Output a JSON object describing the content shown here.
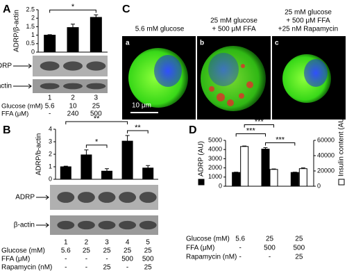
{
  "chart_data": [
    {
      "type": "bar",
      "panel": "A",
      "ylabel": "ADRP/β-actin",
      "ylim": [
        0,
        2.5
      ],
      "yticks": [
        0,
        0.5,
        1,
        1.5,
        2,
        2.5
      ],
      "categories": [
        "1",
        "2",
        "3"
      ],
      "series": [
        {
          "color": "#000000",
          "values": [
            1,
            1.45,
            2.05
          ],
          "errors": [
            0.03,
            0.2,
            0.15
          ]
        }
      ],
      "significance": [
        {
          "between": [
            [
              0,
              0
            ],
            [
              0,
              2
            ]
          ],
          "label": "*"
        }
      ],
      "blots": [
        "ADRP",
        "β-actin"
      ],
      "rows": [
        {
          "label": "Glucose (mM)",
          "values": [
            "5.6",
            "10",
            "25"
          ]
        },
        {
          "label": "FFA (μM)",
          "values": [
            "-",
            "240",
            "500"
          ]
        }
      ]
    },
    {
      "type": "bar",
      "panel": "B",
      "ylabel": "ADRP/b-actin",
      "ylim": [
        0,
        4
      ],
      "yticks": [
        0,
        1,
        2,
        3,
        4
      ],
      "categories": [
        "1",
        "2",
        "3",
        "4",
        "5"
      ],
      "series": [
        {
          "color": "#000000",
          "values": [
            1,
            1.95,
            0.65,
            3.05,
            0.9
          ],
          "errors": [
            0.05,
            0.4,
            0.2,
            0.45,
            0.2
          ]
        }
      ],
      "significance": [
        {
          "between": [
            [
              0,
              1
            ],
            [
              0,
              2
            ]
          ],
          "label": "*"
        },
        {
          "between": [
            [
              0,
              3
            ],
            [
              0,
              4
            ]
          ],
          "label": "**"
        },
        {
          "between": [
            [
              0,
              0
            ],
            [
              0,
              3
            ]
          ],
          "label": "**"
        }
      ],
      "blots": [
        "ADRP",
        "β-actin"
      ],
      "rows": [
        {
          "label": "Glucose (mM)",
          "values": [
            "5.6",
            "25",
            "25",
            "25",
            "25"
          ]
        },
        {
          "label": "FFA (μM)",
          "values": [
            "-",
            "-",
            "-",
            "500",
            "500"
          ]
        },
        {
          "label": "Rapamycin (nM)",
          "values": [
            "-",
            "-",
            "25",
            "-",
            "25"
          ]
        }
      ]
    },
    {
      "type": "bar",
      "panel": "D",
      "ylim": [
        0,
        5000
      ],
      "yticks": [
        0,
        1000,
        2000,
        3000,
        4000,
        5000
      ],
      "y2lim": [
        0,
        60000
      ],
      "y2ticks": [
        0,
        20000,
        40000,
        60000
      ],
      "series": [
        {
          "name": "ADRP (AU)",
          "color": "#000000",
          "values": [
            1500,
            4050,
            1500
          ],
          "errors": [
            30,
            150,
            30
          ]
        },
        {
          "name": "Insulin content (AU)",
          "color": "#ffffff",
          "axis": "y2",
          "values": [
            52000,
            22000,
            23000
          ],
          "errors": [
            600,
            600,
            1000
          ]
        }
      ],
      "significance": [
        {
          "between": [
            [
              0,
              1
            ],
            [
              0,
              2
            ]
          ],
          "label": "***"
        },
        {
          "between": [
            [
              0,
              0
            ],
            [
              0,
              1
            ]
          ],
          "label": "***"
        },
        {
          "between": [
            [
              1,
              0
            ],
            [
              1,
              1
            ]
          ],
          "label": "***"
        }
      ],
      "rows": [
        {
          "label": "Glucose (mM)",
          "values": [
            "5.6",
            "25",
            "25"
          ]
        },
        {
          "label": "FFA (μM)",
          "values": [
            "-",
            "500",
            "500"
          ]
        },
        {
          "label": "Rapamycin (nM)",
          "values": [
            "-",
            "-",
            "25"
          ]
        }
      ]
    }
  ],
  "figure": {
    "panel": "C",
    "scale_bar": "10 μm",
    "micrographs": [
      {
        "label": "a",
        "caption": [
          "5.6 mM glucose"
        ]
      },
      {
        "label": "b",
        "caption": [
          "25 mM glucose",
          "+ 500 μM FFA"
        ]
      },
      {
        "label": "c",
        "caption": [
          "25 mM glucose",
          "+ 500 μM FFA",
          "+25 nM Rapamycin"
        ]
      }
    ]
  }
}
